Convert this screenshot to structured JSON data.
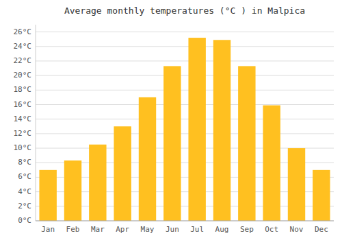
{
  "chart_data": {
    "type": "bar",
    "title": "Average monthly temperatures (°C ) in Malpica",
    "categories": [
      "Jan",
      "Feb",
      "Mar",
      "Apr",
      "May",
      "Jun",
      "Jul",
      "Aug",
      "Sep",
      "Oct",
      "Nov",
      "Dec"
    ],
    "values": [
      7.0,
      8.3,
      10.5,
      13.0,
      17.0,
      21.3,
      25.2,
      24.9,
      21.3,
      15.9,
      10.0,
      7.0
    ],
    "color": "#FFC020",
    "ylim": [
      0,
      27
    ],
    "yticks": [
      {
        "value": 0,
        "label": "0°C"
      },
      {
        "value": 2,
        "label": "2°C"
      },
      {
        "value": 4,
        "label": "4°C"
      },
      {
        "value": 6,
        "label": "6°C"
      },
      {
        "value": 8,
        "label": "8°C"
      },
      {
        "value": 10,
        "label": "10°C"
      },
      {
        "value": 12,
        "label": "12°C"
      },
      {
        "value": 14,
        "label": "14°C"
      },
      {
        "value": 16,
        "label": "16°C"
      },
      {
        "value": 18,
        "label": "18°C"
      },
      {
        "value": 20,
        "label": "20°C"
      },
      {
        "value": 22,
        "label": "22°C"
      },
      {
        "value": 24,
        "label": "24°C"
      },
      {
        "value": 26,
        "label": "26°C"
      }
    ],
    "grid": true
  }
}
